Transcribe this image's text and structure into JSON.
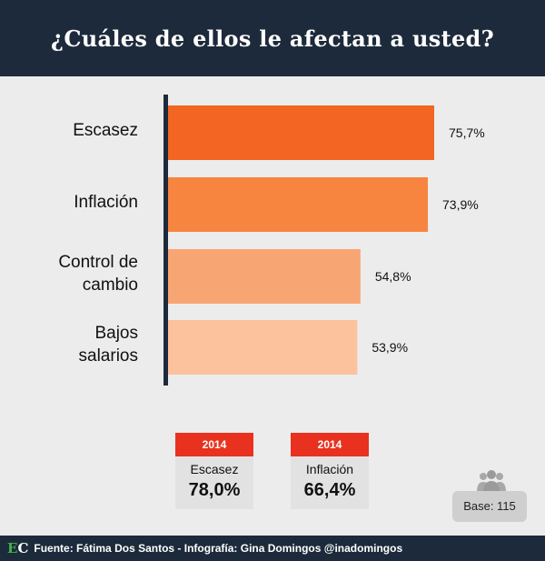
{
  "header": {
    "title": "¿Cuáles de ellos le afectan a usted?"
  },
  "chart_data": {
    "type": "bar",
    "orientation": "horizontal",
    "categories": [
      "Escasez",
      "Inflación",
      "Control de cambio",
      "Bajos salarios"
    ],
    "category_lines": [
      [
        "Escasez"
      ],
      [
        "Inflación"
      ],
      [
        "Control de",
        "cambio"
      ],
      [
        "Bajos",
        "salarios"
      ]
    ],
    "values": [
      75.7,
      73.9,
      54.8,
      53.9
    ],
    "value_labels": [
      "75,7%",
      "73,9%",
      "54,8%",
      "53,9%"
    ],
    "colors": [
      "#f26522",
      "#f7843f",
      "#f8a574",
      "#fbc29d"
    ],
    "xlim": [
      0,
      100
    ],
    "title": "¿Cuáles de ellos le afectan a usted?",
    "grid": false,
    "legend": "none"
  },
  "stats": [
    {
      "year": "2014",
      "name": "Escasez",
      "value": "78,0%"
    },
    {
      "year": "2014",
      "name": "Inflación",
      "value": "66,4%"
    }
  ],
  "base": {
    "label": "Base: 115",
    "icon": "people-icon"
  },
  "footer": {
    "logo_e": "E",
    "logo_c": "C",
    "text": "Fuente: Fátima Dos Santos - Infografía: Gina Domingos @inadomingos"
  }
}
